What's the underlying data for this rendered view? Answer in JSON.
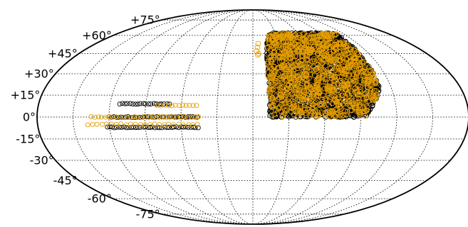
{
  "chart_data": {
    "type": "scatter",
    "projection": "mollweide",
    "title": "",
    "xlabel": "",
    "ylabel": "",
    "grid": true,
    "legend": "none",
    "xlim": [
      -180,
      180
    ],
    "ylim": [
      -90,
      90
    ],
    "y_ticks": [
      {
        "value": 75,
        "label": "+75°"
      },
      {
        "value": 60,
        "label": "+60°"
      },
      {
        "value": 45,
        "label": "+45°"
      },
      {
        "value": 30,
        "label": "+30°"
      },
      {
        "value": 15,
        "label": "+15°"
      },
      {
        "value": 0,
        "label": "0°"
      },
      {
        "value": -15,
        "label": "-15°"
      },
      {
        "value": -30,
        "label": "-30°"
      },
      {
        "value": -45,
        "label": "-45°"
      },
      {
        "value": -60,
        "label": "-60°"
      },
      {
        "value": -75,
        "label": "-75°"
      }
    ],
    "meridians_deg": [
      -150,
      -120,
      -90,
      -60,
      -30,
      0,
      30,
      60,
      90,
      120,
      150
    ],
    "series": [
      {
        "color": "#000000",
        "marker": "open-circle",
        "stripes": [
          {
            "lat": 9,
            "lon_min": -112,
            "lon_max": -70,
            "step": 2.2
          },
          {
            "lat": 0,
            "lon_min": -120,
            "lon_max": -45,
            "step": 2.0
          },
          {
            "lat": -7,
            "lon_min": -122,
            "lon_max": -45,
            "step": 2.0
          }
        ],
        "regions": [
          {
            "lat_min": 0,
            "lat_max": 62,
            "lon_min": 14,
            "lon_max": 110
          }
        ]
      },
      {
        "color": "#e69f00",
        "marker": "open-circle",
        "stripes": [
          {
            "lat": 8,
            "lon_min": -80,
            "lon_max": -47,
            "step": 3.0
          },
          {
            "lat": 0,
            "lon_min": -135,
            "lon_max": -45,
            "step": 3.0
          },
          {
            "lat": -5,
            "lon_min": -138,
            "lon_max": -44,
            "step": 4.0
          }
        ],
        "regions": [
          {
            "lat_min": 0,
            "lat_max": 62,
            "lon_min": 14,
            "lon_max": 110
          }
        ],
        "outliers": [
          {
            "lon": 5,
            "lat": 50
          },
          {
            "lon": 6,
            "lat": 53
          },
          {
            "lon": 4,
            "lat": 47
          },
          {
            "lon": 6,
            "lat": 45
          },
          {
            "lon": 5,
            "lat": 44
          }
        ]
      }
    ]
  }
}
